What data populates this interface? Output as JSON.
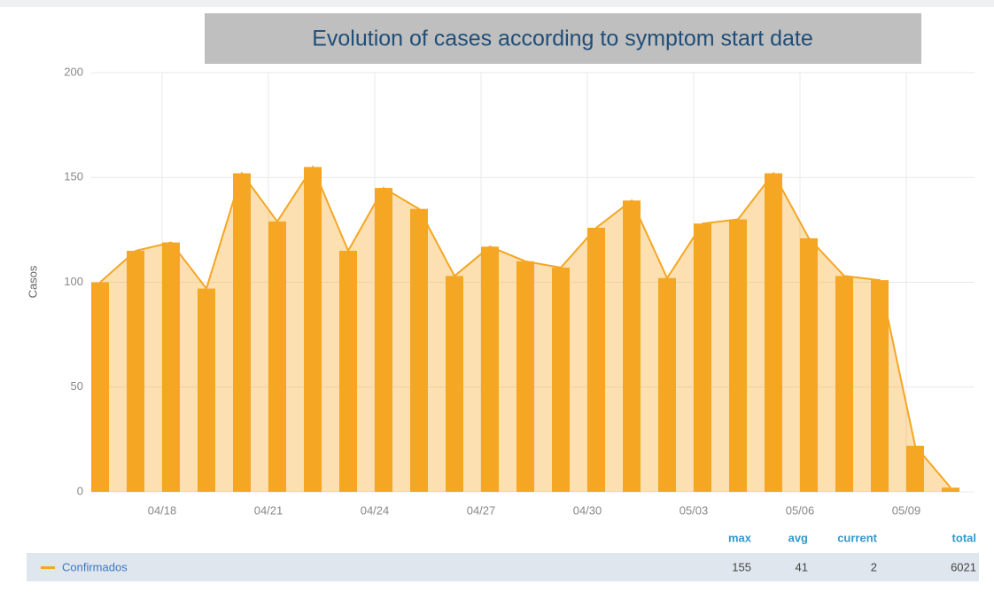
{
  "chart_data": {
    "type": "bar",
    "title": "Evolution of cases according to symptom start date",
    "y_label": "Casos",
    "categories": [
      null,
      null,
      "04/18",
      null,
      null,
      "04/21",
      null,
      null,
      "04/24",
      null,
      null,
      "04/27",
      null,
      null,
      "04/30",
      null,
      null,
      "05/03",
      null,
      null,
      "05/06",
      null,
      null,
      "05/09",
      null
    ],
    "series": [
      {
        "name": "Confirmados",
        "color": "#f5a623",
        "values": [
          100,
          115,
          119,
          97,
          152,
          129,
          155,
          115,
          145,
          135,
          103,
          117,
          110,
          107,
          126,
          139,
          102,
          128,
          130,
          152,
          121,
          103,
          101,
          22,
          2
        ]
      }
    ],
    "ylim": [
      0,
      200
    ],
    "yticks": [
      0,
      50,
      100,
      150,
      200
    ],
    "grid": true,
    "legend": {
      "headers": [
        "max",
        "avg",
        "current",
        "total"
      ],
      "values": [
        155,
        41,
        2,
        6021
      ]
    }
  }
}
